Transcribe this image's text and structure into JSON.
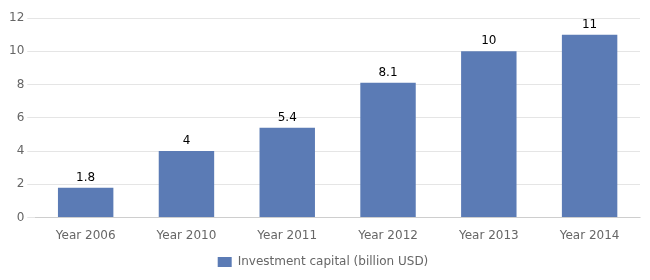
{
  "chart_data": {
    "type": "bar",
    "categories": [
      "Year 2006",
      "Year 2010",
      "Year 2011",
      "Year 2012",
      "Year 2013",
      "Year 2014"
    ],
    "series": [
      {
        "name": "Investment capital (billion USD)",
        "color": "#5B7BB5",
        "values": [
          1.8,
          4,
          5.4,
          8.1,
          10,
          11
        ]
      }
    ],
    "ylim": [
      0,
      12
    ],
    "yticks": [
      0,
      2,
      4,
      6,
      8,
      10,
      12
    ],
    "grid": "y",
    "legend": "bottom",
    "data_labels": true
  }
}
